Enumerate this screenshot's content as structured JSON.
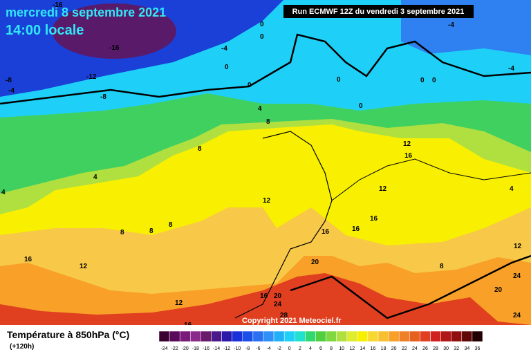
{
  "header": {
    "date": "mercredi 8 septembre 2021",
    "time": "14:00 locale",
    "run": "Run ECMWF 12Z du vendredi 3 septembre 2021"
  },
  "copyright": "Copyright 2021 Meteociel.fr",
  "legend": {
    "title": "Température à 850hPa (°C)",
    "lead": "(+120h)",
    "scale": [
      -24,
      -22,
      -20,
      -18,
      -16,
      -14,
      -12,
      -10,
      -8,
      -6,
      -4,
      -2,
      0,
      2,
      4,
      6,
      8,
      10,
      12,
      14,
      16,
      18,
      20,
      22,
      24,
      26,
      28,
      30,
      32,
      34,
      36
    ],
    "colors": [
      "#3a0030",
      "#5a0a5a",
      "#7a1a7a",
      "#8a2a8a",
      "#6a1a6a",
      "#4a1a8a",
      "#2a1aaa",
      "#1a30d8",
      "#1a50e8",
      "#2a70f0",
      "#2f90f8",
      "#20b0f8",
      "#1ed0f8",
      "#20e0d0",
      "#30d870",
      "#50d040",
      "#80d840",
      "#b0e040",
      "#e0ec30",
      "#f8f000",
      "#f8d830",
      "#f8c030",
      "#f8a028",
      "#f08028",
      "#e86020",
      "#e04020",
      "#d02020",
      "#b01818",
      "#901010",
      "#600808",
      "#200000"
    ]
  },
  "map_labels": [
    -16,
    -16,
    -12,
    -8,
    -4,
    -8,
    -4,
    0,
    0,
    0,
    0,
    0,
    0,
    0,
    0,
    -4,
    -4,
    4,
    8,
    8,
    4,
    4,
    12,
    16,
    12,
    4,
    12,
    16,
    16,
    16,
    8,
    8,
    8,
    16,
    12,
    20,
    12,
    8,
    24,
    20,
    24,
    16,
    20,
    24,
    12,
    28,
    16
  ]
}
